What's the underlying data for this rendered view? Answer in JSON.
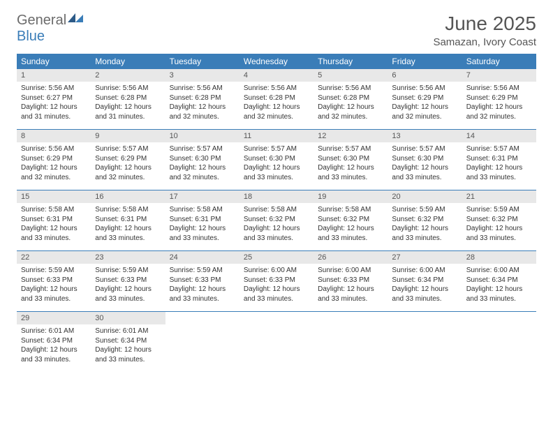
{
  "logo": {
    "word1": "General",
    "word2": "Blue"
  },
  "title": "June 2025",
  "location": "Samazan, Ivory Coast",
  "colors": {
    "header_bg": "#3a7db8",
    "daynum_bg": "#e8e8e8",
    "text": "#333333",
    "title_text": "#555555",
    "logo_gray": "#6b6b6b",
    "logo_blue": "#3a7db8",
    "page_bg": "#ffffff",
    "row_border": "#3a7db8"
  },
  "weekdays": [
    "Sunday",
    "Monday",
    "Tuesday",
    "Wednesday",
    "Thursday",
    "Friday",
    "Saturday"
  ],
  "weeks": [
    [
      {
        "n": "1",
        "sr": "5:56 AM",
        "ss": "6:27 PM",
        "dl": "12 hours and 31 minutes."
      },
      {
        "n": "2",
        "sr": "5:56 AM",
        "ss": "6:28 PM",
        "dl": "12 hours and 31 minutes."
      },
      {
        "n": "3",
        "sr": "5:56 AM",
        "ss": "6:28 PM",
        "dl": "12 hours and 32 minutes."
      },
      {
        "n": "4",
        "sr": "5:56 AM",
        "ss": "6:28 PM",
        "dl": "12 hours and 32 minutes."
      },
      {
        "n": "5",
        "sr": "5:56 AM",
        "ss": "6:28 PM",
        "dl": "12 hours and 32 minutes."
      },
      {
        "n": "6",
        "sr": "5:56 AM",
        "ss": "6:29 PM",
        "dl": "12 hours and 32 minutes."
      },
      {
        "n": "7",
        "sr": "5:56 AM",
        "ss": "6:29 PM",
        "dl": "12 hours and 32 minutes."
      }
    ],
    [
      {
        "n": "8",
        "sr": "5:56 AM",
        "ss": "6:29 PM",
        "dl": "12 hours and 32 minutes."
      },
      {
        "n": "9",
        "sr": "5:57 AM",
        "ss": "6:29 PM",
        "dl": "12 hours and 32 minutes."
      },
      {
        "n": "10",
        "sr": "5:57 AM",
        "ss": "6:30 PM",
        "dl": "12 hours and 32 minutes."
      },
      {
        "n": "11",
        "sr": "5:57 AM",
        "ss": "6:30 PM",
        "dl": "12 hours and 33 minutes."
      },
      {
        "n": "12",
        "sr": "5:57 AM",
        "ss": "6:30 PM",
        "dl": "12 hours and 33 minutes."
      },
      {
        "n": "13",
        "sr": "5:57 AM",
        "ss": "6:30 PM",
        "dl": "12 hours and 33 minutes."
      },
      {
        "n": "14",
        "sr": "5:57 AM",
        "ss": "6:31 PM",
        "dl": "12 hours and 33 minutes."
      }
    ],
    [
      {
        "n": "15",
        "sr": "5:58 AM",
        "ss": "6:31 PM",
        "dl": "12 hours and 33 minutes."
      },
      {
        "n": "16",
        "sr": "5:58 AM",
        "ss": "6:31 PM",
        "dl": "12 hours and 33 minutes."
      },
      {
        "n": "17",
        "sr": "5:58 AM",
        "ss": "6:31 PM",
        "dl": "12 hours and 33 minutes."
      },
      {
        "n": "18",
        "sr": "5:58 AM",
        "ss": "6:32 PM",
        "dl": "12 hours and 33 minutes."
      },
      {
        "n": "19",
        "sr": "5:58 AM",
        "ss": "6:32 PM",
        "dl": "12 hours and 33 minutes."
      },
      {
        "n": "20",
        "sr": "5:59 AM",
        "ss": "6:32 PM",
        "dl": "12 hours and 33 minutes."
      },
      {
        "n": "21",
        "sr": "5:59 AM",
        "ss": "6:32 PM",
        "dl": "12 hours and 33 minutes."
      }
    ],
    [
      {
        "n": "22",
        "sr": "5:59 AM",
        "ss": "6:33 PM",
        "dl": "12 hours and 33 minutes."
      },
      {
        "n": "23",
        "sr": "5:59 AM",
        "ss": "6:33 PM",
        "dl": "12 hours and 33 minutes."
      },
      {
        "n": "24",
        "sr": "5:59 AM",
        "ss": "6:33 PM",
        "dl": "12 hours and 33 minutes."
      },
      {
        "n": "25",
        "sr": "6:00 AM",
        "ss": "6:33 PM",
        "dl": "12 hours and 33 minutes."
      },
      {
        "n": "26",
        "sr": "6:00 AM",
        "ss": "6:33 PM",
        "dl": "12 hours and 33 minutes."
      },
      {
        "n": "27",
        "sr": "6:00 AM",
        "ss": "6:34 PM",
        "dl": "12 hours and 33 minutes."
      },
      {
        "n": "28",
        "sr": "6:00 AM",
        "ss": "6:34 PM",
        "dl": "12 hours and 33 minutes."
      }
    ],
    [
      {
        "n": "29",
        "sr": "6:01 AM",
        "ss": "6:34 PM",
        "dl": "12 hours and 33 minutes."
      },
      {
        "n": "30",
        "sr": "6:01 AM",
        "ss": "6:34 PM",
        "dl": "12 hours and 33 minutes."
      },
      null,
      null,
      null,
      null,
      null
    ]
  ],
  "labels": {
    "sunrise": "Sunrise:",
    "sunset": "Sunset:",
    "daylight": "Daylight:"
  }
}
